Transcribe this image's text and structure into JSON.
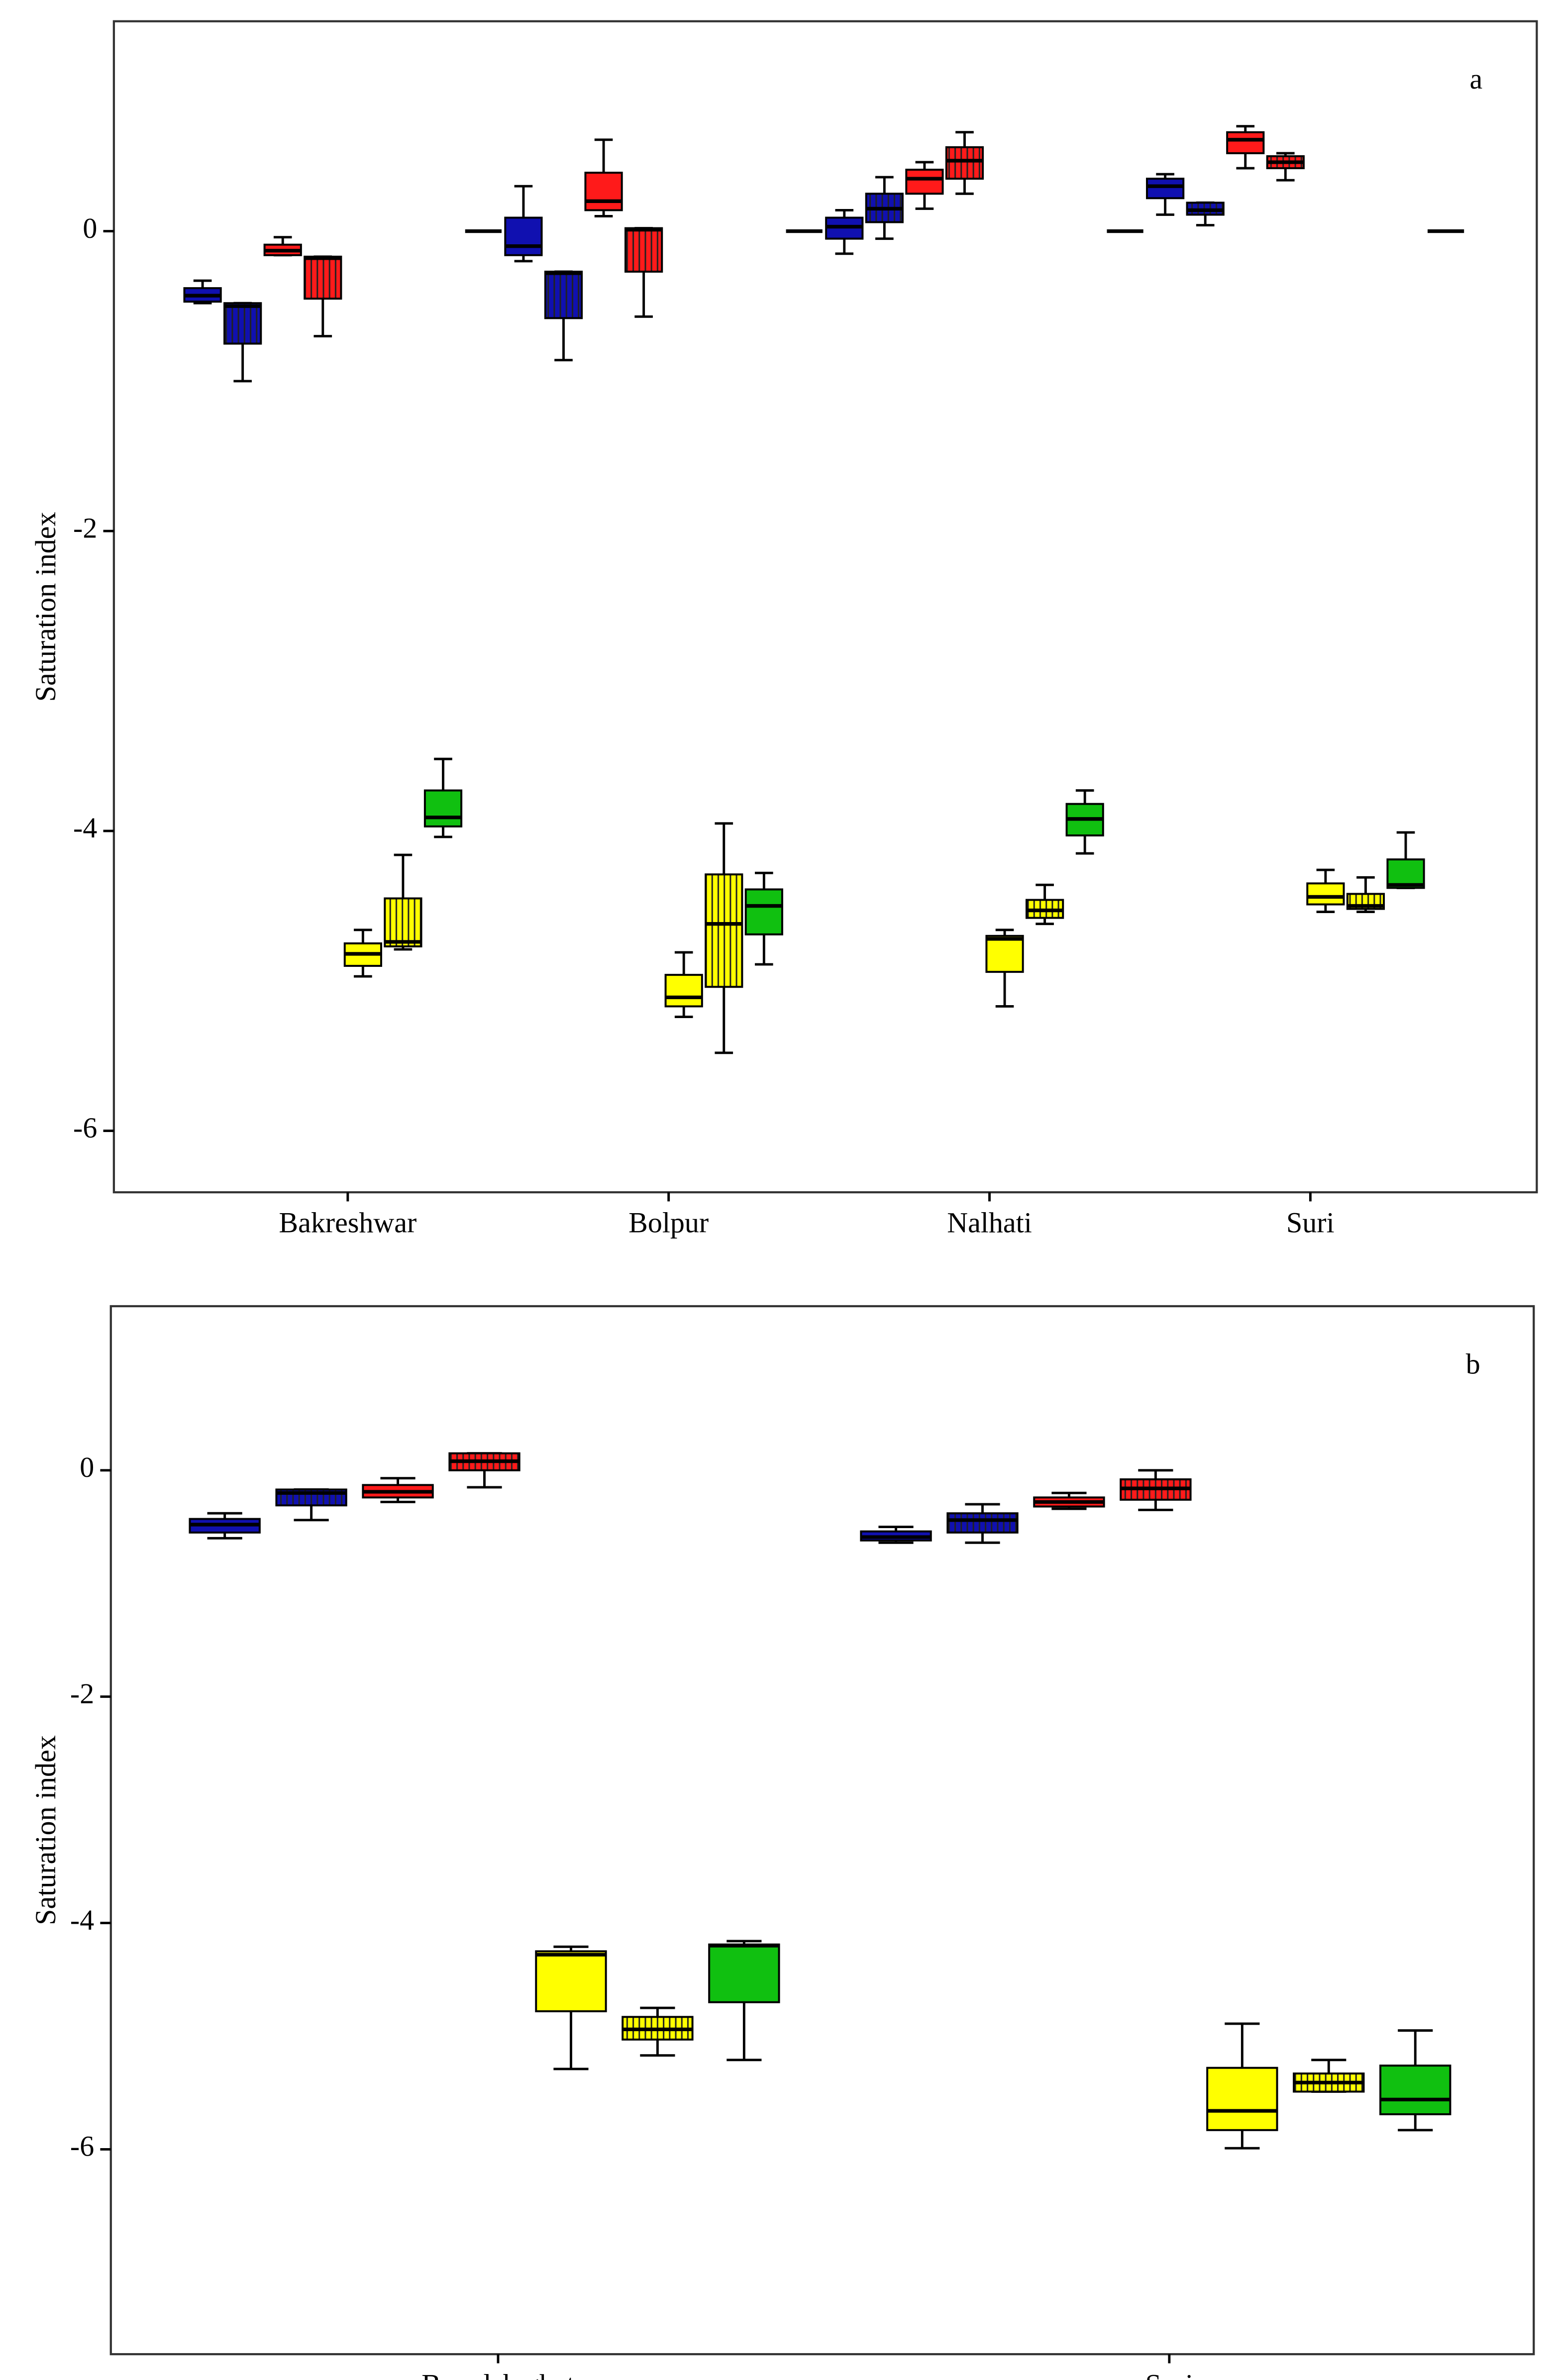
{
  "chart_data": [
    {
      "type": "box",
      "annotation": "a",
      "ylabel": "Saturation index",
      "categories": [
        "Bakreshwar",
        "Bolpur",
        "Nalhati",
        "Suri"
      ],
      "ylim": [
        -6.41,
        1.4
      ],
      "yticks": [
        -6,
        -4,
        -2,
        0
      ],
      "series": [
        {
          "color": "#000000",
          "values": [
            null,
            [
              0,
              0,
              0,
              0,
              0
            ],
            [
              0,
              0,
              0,
              0,
              0
            ],
            [
              0,
              0,
              0,
              0,
              0
            ]
          ]
        },
        {
          "color": "#1010b0",
          "values": [
            [
              -0.48,
              -0.47,
              -0.43,
              -0.38,
              -0.33
            ],
            [
              -0.2,
              -0.16,
              -0.1,
              0.09,
              0.3
            ],
            [
              -0.15,
              -0.05,
              0.03,
              0.09,
              0.14
            ],
            [
              0.11,
              0.22,
              0.3,
              0.35,
              0.38
            ]
          ]
        },
        {
          "color": "#1010b0",
          "pattern": "vertical",
          "values": [
            [
              -1.0,
              -0.75,
              -0.5,
              -0.48,
              -0.48
            ],
            [
              -0.86,
              -0.58,
              -0.28,
              -0.27,
              -0.27
            ],
            [
              -0.05,
              0.06,
              0.15,
              0.25,
              0.36
            ],
            [
              0.04,
              0.11,
              0.14,
              0.19,
              0.19
            ]
          ]
        },
        {
          "color": "#ff1a1a",
          "values": [
            [
              -0.16,
              -0.16,
              -0.13,
              -0.09,
              -0.04
            ],
            [
              0.1,
              0.14,
              0.2,
              0.39,
              0.61
            ],
            [
              0.15,
              0.25,
              0.35,
              0.41,
              0.46
            ],
            [
              0.42,
              0.52,
              0.61,
              0.66,
              0.7
            ]
          ]
        },
        {
          "color": "#ff1a1a",
          "pattern": "vertical",
          "values": [
            [
              -0.7,
              -0.45,
              -0.18,
              -0.17,
              -0.17
            ],
            [
              -0.57,
              -0.27,
              0.01,
              0.02,
              0.02
            ],
            [
              0.25,
              0.35,
              0.47,
              0.56,
              0.66
            ],
            [
              0.34,
              0.42,
              0.46,
              0.5,
              0.52
            ]
          ]
        },
        {
          "color": "#ffff00",
          "values": [
            [
              -4.97,
              -4.9,
              -4.82,
              -4.75,
              -4.66
            ],
            [
              -5.24,
              -5.17,
              -5.11,
              -4.96,
              -4.81
            ],
            [
              -5.17,
              -4.94,
              -4.72,
              -4.7,
              -4.66
            ],
            [
              -4.54,
              -4.49,
              -4.44,
              -4.35,
              -4.26
            ]
          ]
        },
        {
          "color": "#ffff00",
          "pattern": "vertical",
          "values": [
            [
              -4.79,
              -4.77,
              -4.74,
              -4.45,
              -4.16
            ],
            [
              -5.48,
              -5.04,
              -4.62,
              -4.29,
              -3.95
            ],
            [
              -4.62,
              -4.58,
              -4.53,
              -4.46,
              -4.36
            ],
            [
              -4.54,
              -4.52,
              -4.5,
              -4.42,
              -4.31
            ]
          ]
        },
        {
          "color": "#10c010",
          "values": [
            [
              -4.04,
              -3.97,
              -3.91,
              -3.73,
              -3.52
            ],
            [
              -4.89,
              -4.69,
              -4.5,
              -4.39,
              -4.28
            ],
            [
              -4.15,
              -4.03,
              -3.92,
              -3.82,
              -3.73
            ],
            [
              -4.38,
              -4.38,
              -4.36,
              -4.19,
              -4.01
            ]
          ]
        },
        {
          "color": "#000000",
          "values": [
            null,
            null,
            null,
            [
              0,
              0,
              0,
              0,
              0
            ]
          ]
        }
      ]
    },
    {
      "type": "box",
      "annotation": "b",
      "ylabel": "Saturation index",
      "categories": [
        "Bamdeb ghat",
        "Suri"
      ],
      "ylim": [
        -7.81,
        1.45
      ],
      "yticks": [
        -6,
        -4,
        -2,
        0
      ],
      "series": [
        {
          "color": "#1010b0",
          "values": [
            [
              -0.6,
              -0.55,
              -0.48,
              -0.43,
              -0.38
            ],
            [
              -0.64,
              -0.62,
              -0.59,
              -0.54,
              -0.5
            ]
          ]
        },
        {
          "color": "#1010b0",
          "pattern": "vertical",
          "values": [
            [
              -0.44,
              -0.31,
              -0.2,
              -0.17,
              -0.17
            ],
            [
              -0.64,
              -0.55,
              -0.44,
              -0.38,
              -0.3
            ]
          ]
        },
        {
          "color": "#ff1a1a",
          "values": [
            [
              -0.28,
              -0.24,
              -0.19,
              -0.13,
              -0.07
            ],
            [
              -0.34,
              -0.32,
              -0.28,
              -0.24,
              -0.2
            ]
          ]
        },
        {
          "color": "#ff1a1a",
          "pattern": "vertical",
          "values": [
            [
              -0.15,
              0,
              0.08,
              0.15,
              0.15
            ],
            [
              -0.35,
              -0.26,
              -0.16,
              -0.08,
              0
            ]
          ]
        },
        {
          "color": "#ffff00",
          "values": [
            [
              -5.29,
              -4.78,
              -4.28,
              -4.25,
              -4.21
            ],
            [
              -5.99,
              -5.83,
              -5.66,
              -5.28,
              -4.89
            ]
          ]
        },
        {
          "color": "#ffff00",
          "pattern": "vertical",
          "values": [
            [
              -5.17,
              -5.03,
              -4.94,
              -4.83,
              -4.75
            ],
            [
              -5.49,
              -5.49,
              -5.41,
              -5.33,
              -5.21
            ]
          ]
        },
        {
          "color": "#10c010",
          "values": [
            [
              -5.21,
              -4.7,
              -4.2,
              -4.19,
              -4.16
            ],
            [
              -5.83,
              -5.69,
              -5.56,
              -5.26,
              -4.95
            ]
          ]
        }
      ]
    }
  ]
}
